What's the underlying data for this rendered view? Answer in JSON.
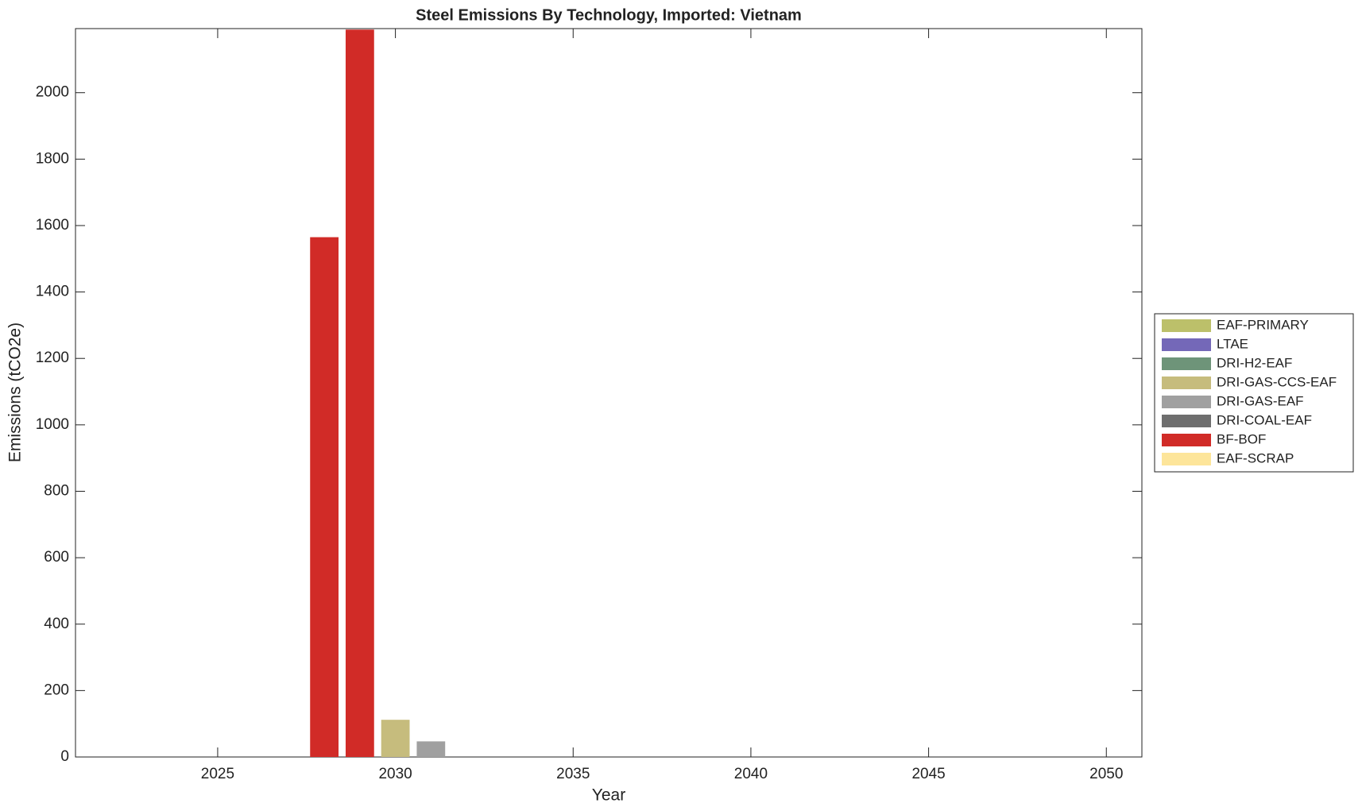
{
  "chart_data": {
    "type": "stacked_bar",
    "title": "Steel Emissions By Technology, Imported: Vietnam",
    "x_label": "Year",
    "y_label": "Emissions (tCO2e)",
    "x": [
      2028,
      2029,
      2030,
      2031
    ],
    "series": [
      {
        "name": "EAF-PRIMARY",
        "color": "#bcc06a",
        "values": [
          0,
          0,
          0,
          0
        ]
      },
      {
        "name": "LTAE",
        "color": "#7468b8",
        "values": [
          0,
          0,
          0,
          0
        ]
      },
      {
        "name": "DRI-H2-EAF",
        "color": "#6e9479",
        "values": [
          0,
          0,
          0,
          0
        ]
      },
      {
        "name": "DRI-GAS-CCS-EAF",
        "color": "#c6bc7d",
        "values": [
          0,
          0,
          112,
          0
        ]
      },
      {
        "name": "DRI-GAS-EAF",
        "color": "#a0a0a0",
        "values": [
          0,
          0,
          0,
          47
        ]
      },
      {
        "name": "DRI-COAL-EAF",
        "color": "#6e6e6e",
        "values": [
          0,
          0,
          0,
          0
        ]
      },
      {
        "name": "BF-BOF",
        "color": "#d12b27",
        "values": [
          1565,
          2190,
          0,
          0
        ]
      },
      {
        "name": "EAF-SCRAP",
        "color": "#fde59a",
        "values": [
          0,
          0,
          0,
          0
        ]
      }
    ],
    "xlim": [
      2021,
      2051
    ],
    "xticks": [
      2025,
      2030,
      2035,
      2040,
      2045,
      2050
    ],
    "ylim": [
      0,
      2193
    ],
    "yticks": [
      0,
      200,
      400,
      600,
      800,
      1000,
      1200,
      1400,
      1600,
      1800,
      2000
    ],
    "grid": false,
    "legend": "outside right"
  }
}
